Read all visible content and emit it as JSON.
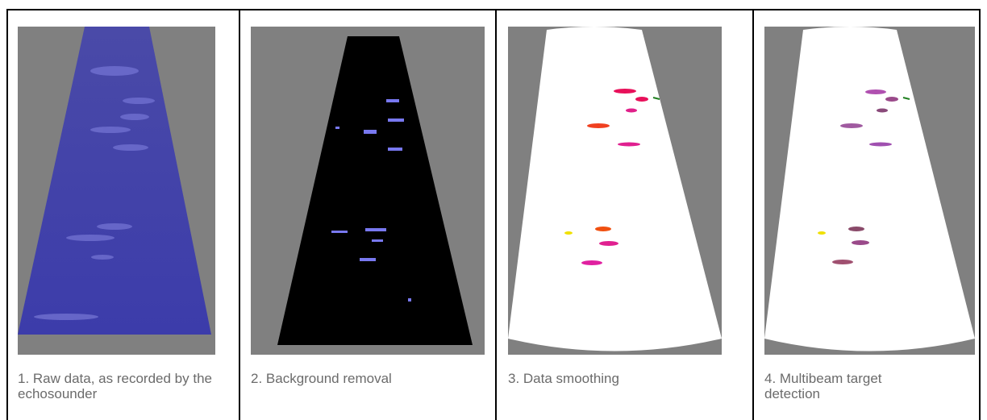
{
  "panels": [
    {
      "caption": "1. Raw data, as recorded by the echosounder"
    },
    {
      "caption": "2. Background removal"
    },
    {
      "caption": "3. Data smoothing"
    },
    {
      "caption": "4. Multibeam target detection"
    }
  ]
}
